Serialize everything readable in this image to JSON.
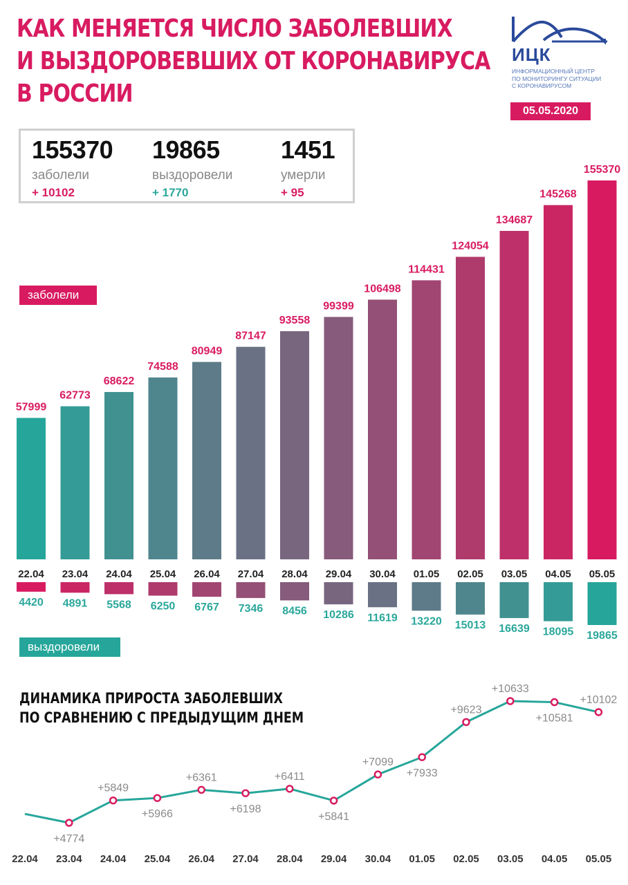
{
  "header": {
    "title_lines": [
      "КАК МЕНЯЕТСЯ ЧИСЛО ЗАБОЛЕВШИХ",
      "И ВЫЗДОРОВЕВШИХ ОТ КОРОНАВИРУСА",
      "В РОССИИ"
    ],
    "date": "05.05.2020"
  },
  "logo": {
    "abbr": "ИЦК",
    "subtitle": "ИНФОРМАЦИОННЫЙ ЦЕНТР\nПО МОНИТОРИНГУ СИТУАЦИИ\nС КОРОНАВИРУСОМ",
    "color": "#2a4a9b"
  },
  "stats": {
    "infected": {
      "value": "155370",
      "label": "заболели",
      "delta": "+ 10102"
    },
    "recovered": {
      "value": "19865",
      "label": "выздоровели",
      "delta": "+ 1770"
    },
    "died": {
      "value": "1451",
      "label": "умерли",
      "delta": "+ 95"
    }
  },
  "tags": {
    "infected": "заболели",
    "recovered": "выздоровели"
  },
  "colors": {
    "pink": "#d81b60",
    "teal": "#26a69a",
    "teal_text": "#2aa79b",
    "grey": "#8a8a8a"
  },
  "chart_data": [
    {
      "type": "bar",
      "categories": [
        "22.04",
        "23.04",
        "24.04",
        "25.04",
        "26.04",
        "27.04",
        "28.04",
        "29.04",
        "30.04",
        "01.05",
        "02.05",
        "03.05",
        "04.05",
        "05.05"
      ],
      "series": [
        {
          "name": "заболели",
          "values": [
            57999,
            62773,
            68622,
            74588,
            80949,
            87147,
            93558,
            99399,
            106498,
            114431,
            124054,
            134687,
            145268,
            155370
          ]
        },
        {
          "name": "выздоровели",
          "values": [
            4420,
            4891,
            5568,
            6250,
            6767,
            7346,
            8456,
            10286,
            11619,
            13220,
            15013,
            16639,
            18095,
            19865
          ]
        }
      ]
    },
    {
      "type": "line",
      "title": "ДИНАМИКА ПРИРОСТА ЗАБОЛЕВШИХ\nПО СРАВНЕНИЮ С ПРЕДЫДУЩИМ ДНЕМ",
      "title_lines": [
        "ДИНАМИКА ПРИРОСТА ЗАБОЛЕВШИХ",
        "ПО СРАВНЕНИЮ С ПРЕДЫДУЩИМ ДНЕМ"
      ],
      "x": [
        "22.04",
        "23.04",
        "24.04",
        "25.04",
        "26.04",
        "27.04",
        "28.04",
        "29.04",
        "30.04",
        "01.05",
        "02.05",
        "03.05",
        "04.05",
        "05.05"
      ],
      "values": [
        5200,
        4774,
        5849,
        5966,
        6361,
        6198,
        6411,
        5841,
        7099,
        7933,
        9623,
        10633,
        10581,
        10102
      ],
      "labels": [
        "",
        "+4774",
        "+5849",
        "+5966",
        "+6361",
        "+6198",
        "+6411",
        "+5841",
        "+7099",
        "+7933",
        "+9623",
        "+10633",
        "+10581",
        "+10102"
      ]
    }
  ]
}
